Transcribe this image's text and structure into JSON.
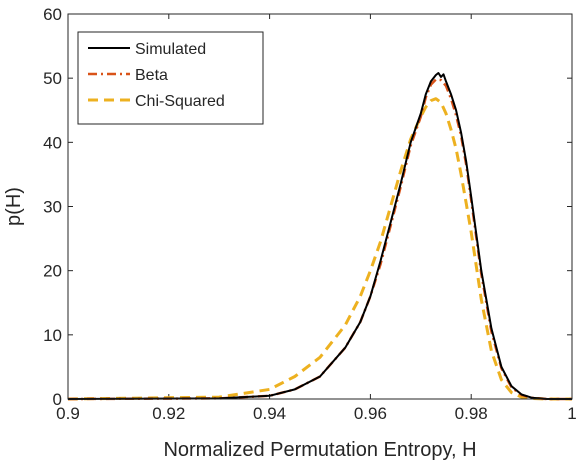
{
  "chart_data": {
    "type": "line",
    "title": "",
    "xlabel": "Normalized Permutation Entropy, H",
    "ylabel": "p(H)",
    "xlim": [
      0.9,
      1.0
    ],
    "ylim": [
      0,
      60
    ],
    "xticks": [
      0.9,
      0.92,
      0.94,
      0.96,
      0.98,
      1.0
    ],
    "xtick_labels": [
      "0.9",
      "0.92",
      "0.94",
      "0.96",
      "0.98",
      "1"
    ],
    "yticks": [
      0,
      10,
      20,
      30,
      40,
      50,
      60
    ],
    "ytick_labels": [
      "0",
      "10",
      "20",
      "30",
      "40",
      "50",
      "60"
    ],
    "grid": false,
    "legend_position": "top-left",
    "series": [
      {
        "name": "Simulated",
        "color": "#000000",
        "line_style": "solid",
        "x": [
          0.9,
          0.93,
          0.94,
          0.945,
          0.95,
          0.955,
          0.958,
          0.96,
          0.962,
          0.964,
          0.966,
          0.968,
          0.97,
          0.971,
          0.972,
          0.973,
          0.9735,
          0.974,
          0.9745,
          0.975,
          0.976,
          0.977,
          0.978,
          0.979,
          0.98,
          0.982,
          0.984,
          0.986,
          0.988,
          0.99,
          0.992,
          0.995,
          1.0
        ],
        "y": [
          0,
          0.1,
          0.5,
          1.5,
          3.5,
          8.0,
          12.0,
          16.0,
          21.5,
          27.5,
          33.5,
          40.0,
          44.5,
          47.5,
          49.5,
          50.5,
          50.8,
          50.2,
          50.6,
          49.5,
          47.5,
          45.0,
          41.5,
          37.0,
          31.5,
          20.0,
          11.0,
          5.0,
          2.0,
          0.7,
          0.2,
          0,
          0
        ]
      },
      {
        "name": "Beta",
        "color": "#D95319",
        "line_style": "dash-dot",
        "x": [
          0.9,
          0.93,
          0.94,
          0.945,
          0.95,
          0.955,
          0.958,
          0.96,
          0.962,
          0.964,
          0.966,
          0.968,
          0.97,
          0.971,
          0.972,
          0.973,
          0.974,
          0.975,
          0.976,
          0.977,
          0.978,
          0.979,
          0.98,
          0.982,
          0.984,
          0.986,
          0.988,
          0.99,
          0.992,
          0.995,
          1.0
        ],
        "y": [
          0,
          0.1,
          0.5,
          1.5,
          3.5,
          8.0,
          12.0,
          16.0,
          21.0,
          27.0,
          33.0,
          39.5,
          44.0,
          47.0,
          49.0,
          49.8,
          49.7,
          48.8,
          46.8,
          44.2,
          41.0,
          36.5,
          31.0,
          19.5,
          10.5,
          4.8,
          1.8,
          0.6,
          0.2,
          0,
          0
        ]
      },
      {
        "name": "Chi-Squared",
        "color": "#EDB120",
        "line_style": "dashed",
        "x": [
          0.9,
          0.93,
          0.94,
          0.945,
          0.95,
          0.955,
          0.958,
          0.96,
          0.962,
          0.964,
          0.966,
          0.968,
          0.97,
          0.971,
          0.972,
          0.973,
          0.974,
          0.975,
          0.976,
          0.977,
          0.978,
          0.979,
          0.98,
          0.982,
          0.984,
          0.986,
          0.988,
          0.99,
          0.992,
          0.995,
          1.0
        ],
        "y": [
          0,
          0.3,
          1.5,
          3.5,
          6.5,
          11.5,
          16.0,
          20.0,
          24.5,
          30.0,
          35.5,
          40.5,
          44.0,
          45.5,
          46.5,
          46.8,
          46.2,
          44.5,
          42.0,
          39.0,
          35.0,
          30.5,
          26.0,
          15.5,
          7.5,
          3.0,
          1.0,
          0.3,
          0.1,
          0,
          0
        ]
      }
    ]
  }
}
